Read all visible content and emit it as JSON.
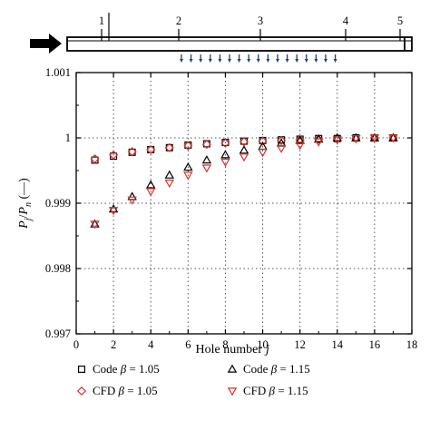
{
  "chart_data": {
    "type": "scatter",
    "xlabel": "Hole number",
    "xlabel_var": "j",
    "ylabel": "P_j/P_n (—)",
    "xlim": [
      0,
      18
    ],
    "ylim": [
      0.997,
      1.001
    ],
    "x_ticks": [
      "0",
      "2",
      "4",
      "6",
      "8",
      "10",
      "12",
      "14",
      "16",
      "18"
    ],
    "y_ticks": [
      "0.997",
      "0.998",
      "0.999",
      "1",
      "1.001"
    ],
    "grid": true,
    "legend_position": "bottom",
    "series": [
      {
        "name": "Code β = 1.05",
        "name_prefix": "Code",
        "beta_text": "= 1.05",
        "marker": "square",
        "color": "#000000",
        "x": [
          1,
          2,
          3,
          4,
          5,
          6,
          7,
          8,
          9,
          10,
          11,
          12,
          13,
          14,
          15,
          16,
          17
        ],
        "y": [
          0.99966,
          0.99972,
          0.99978,
          0.99982,
          0.99985,
          0.99989,
          0.99991,
          0.99993,
          0.99995,
          0.99996,
          0.99997,
          0.99998,
          0.99999,
          0.99999,
          1.0,
          1.0,
          1.0
        ]
      },
      {
        "name": "CFD β = 1.05",
        "name_prefix": "CFD",
        "beta_text": "= 1.05",
        "marker": "diamond",
        "color": "#d9322b",
        "x": [
          1,
          2,
          3,
          4,
          5,
          6,
          7,
          8,
          9,
          10,
          11,
          12,
          13,
          14,
          15,
          16,
          17
        ],
        "y": [
          0.99968,
          0.99974,
          0.99979,
          0.99982,
          0.99985,
          0.99988,
          0.9999,
          0.99992,
          0.99994,
          0.99995,
          0.99996,
          0.99997,
          0.99998,
          0.99999,
          0.99999,
          1.0,
          1.0
        ]
      },
      {
        "name": "Code β = 1.15",
        "name_prefix": "Code",
        "beta_text": "= 1.15",
        "marker": "triangle-up",
        "color": "#000000",
        "x": [
          1,
          2,
          3,
          4,
          5,
          6,
          7,
          8,
          9,
          10,
          11,
          12,
          13,
          14,
          15,
          16,
          17
        ],
        "y": [
          0.99868,
          0.99891,
          0.9991,
          0.99928,
          0.99943,
          0.99955,
          0.99966,
          0.99974,
          0.99981,
          0.99987,
          0.99992,
          0.99996,
          0.99998,
          1.0,
          1.0,
          1.0,
          1.0
        ]
      },
      {
        "name": "CFD β = 1.15",
        "name_prefix": "CFD",
        "beta_text": "= 1.15",
        "marker": "triangle-down",
        "color": "#d9322b",
        "x": [
          1,
          2,
          3,
          4,
          5,
          6,
          7,
          8,
          9,
          10,
          11,
          12,
          13,
          14,
          15,
          16,
          17
        ],
        "y": [
          0.99868,
          0.99889,
          0.99905,
          0.99918,
          0.99931,
          0.99943,
          0.99954,
          0.99963,
          0.99971,
          0.99978,
          0.99984,
          0.99989,
          0.99994,
          0.99997,
          0.99999,
          1.0,
          1.0
        ]
      }
    ]
  },
  "schematic": {
    "section_labels": [
      "1",
      "2",
      "3",
      "4",
      "5"
    ]
  }
}
